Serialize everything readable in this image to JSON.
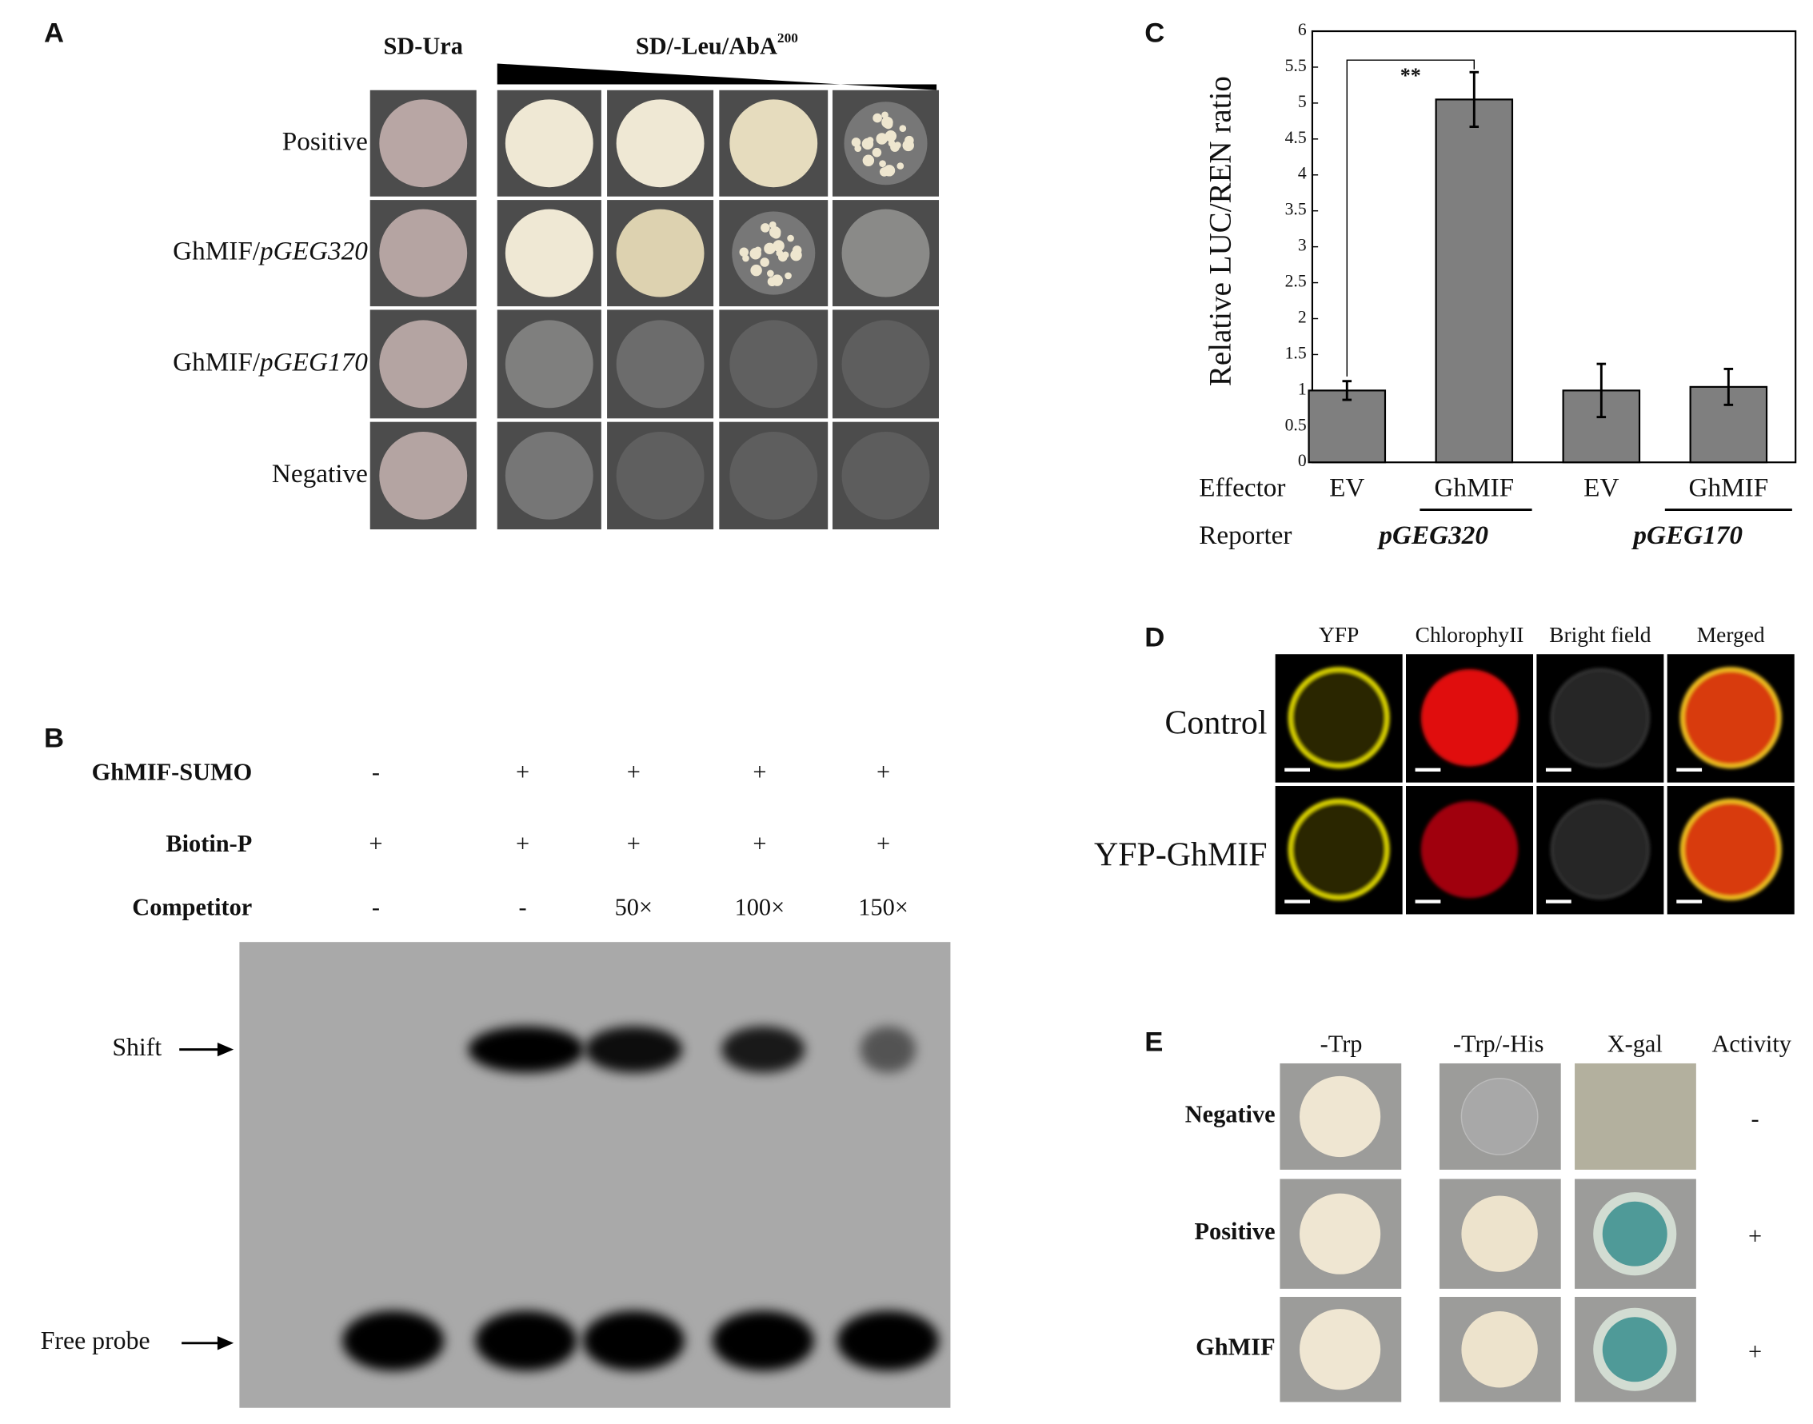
{
  "panel_a": {
    "label": "A",
    "header_left": "SD-Ura",
    "header_right": "SD/-Leu/AbA",
    "header_right_sup": "200",
    "rows": [
      {
        "name": "Positive"
      },
      {
        "name": "GhMIF/",
        "name_italic": "pGEG320"
      },
      {
        "name": "GhMIF/",
        "name_italic": "pGEG170"
      },
      {
        "name": "Negative"
      }
    ]
  },
  "panel_b": {
    "label": "B",
    "rows": [
      {
        "name": "GhMIF-SUMO",
        "cells": [
          "-",
          "+",
          "+",
          "+",
          "+"
        ]
      },
      {
        "name": "Biotin-P",
        "cells": [
          "+",
          "+",
          "+",
          "+",
          "+"
        ]
      },
      {
        "name": "Competitor",
        "cells": [
          "-",
          "-",
          "50×",
          "100×",
          "150×"
        ]
      }
    ],
    "shift_label": "Shift",
    "free_probe_label": "Free probe"
  },
  "chart_data": {
    "type": "bar",
    "panel_label": "C",
    "ylabel": "Relative LUC/REN ratio",
    "categories": [
      "EV",
      "GhMIF",
      "EV",
      "GhMIF"
    ],
    "values": [
      1,
      5.05,
      1,
      1.05
    ],
    "errors": [
      0.13,
      0.38,
      0.37,
      0.25
    ],
    "color": "#7f7f7f",
    "ylim": [
      0,
      6
    ],
    "yticks": [
      0,
      0.5,
      1,
      1.5,
      2,
      2.5,
      3,
      3.5,
      4,
      4.5,
      5,
      5.5,
      6
    ],
    "significance": "**",
    "effector_label": "Effector",
    "reporter_label": "Reporter",
    "reporters": [
      "pGEG320",
      "pGEG170"
    ]
  },
  "panel_d": {
    "label": "D",
    "columns": [
      "YFP",
      "ChlorophyII",
      "Bright field",
      "Merged"
    ],
    "rows": [
      "Control",
      "YFP-GhMIF"
    ]
  },
  "panel_e": {
    "label": "E",
    "columns": [
      "-Trp",
      "-Trp/-His",
      "X-gal",
      "Activity"
    ],
    "rows": [
      {
        "name": "Negative",
        "activity": "-"
      },
      {
        "name": "Positive",
        "activity": "+"
      },
      {
        "name": "GhMIF",
        "activity": "+"
      }
    ]
  }
}
